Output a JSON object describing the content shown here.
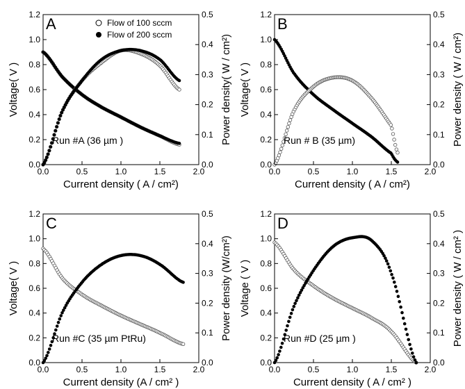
{
  "chart_data": [
    {
      "panel": "A",
      "type": "scatter",
      "annotation": "Run #A (36 µm )",
      "xlabel": "Current density ( A / cm²)",
      "ylabel_left": "Voltage( V )",
      "ylabel_right": "Power density( W / cm²)",
      "xlim": [
        0,
        2.0
      ],
      "ylim_left": [
        0,
        1.2
      ],
      "ylim_right": [
        0,
        0.5
      ],
      "x_ticks": [
        "0.0",
        "0.5",
        "1.0",
        "1.5",
        "2.0"
      ],
      "y_left_ticks": [
        "0.0",
        "0.2",
        "0.4",
        "0.6",
        "0.8",
        "1.0",
        "1.2"
      ],
      "y_right_ticks": [
        "0.0",
        "0.1",
        "0.2",
        "0.3",
        "0.4",
        "0.5"
      ],
      "legend": [
        "Flow of 100 sccm",
        "Flow of 200 sccm"
      ],
      "legend_position": "top-right",
      "curves": {
        "ocv": 0.9,
        "vmax_current": 1.75,
        "v_end": 0.17,
        "power_peak": 0.38,
        "power_peak_current": 1.1
      },
      "series": [
        {
          "marker": "open",
          "kind": "voltage",
          "x": [
            0.0,
            0.25,
            0.5,
            0.75,
            1.0,
            1.25,
            1.5,
            1.75
          ],
          "y": [
            0.9,
            0.7,
            0.56,
            0.46,
            0.38,
            0.3,
            0.23,
            0.16
          ]
        },
        {
          "marker": "filled",
          "kind": "voltage",
          "x": [
            0.0,
            0.25,
            0.5,
            0.75,
            1.0,
            1.25,
            1.5,
            1.75
          ],
          "y": [
            0.9,
            0.7,
            0.56,
            0.46,
            0.38,
            0.3,
            0.23,
            0.17
          ]
        },
        {
          "marker": "open",
          "kind": "power",
          "x": [
            0.0,
            0.25,
            0.5,
            0.75,
            1.0,
            1.25,
            1.5,
            1.75
          ],
          "y": [
            0.0,
            0.18,
            0.28,
            0.34,
            0.38,
            0.37,
            0.33,
            0.25
          ]
        },
        {
          "marker": "filled",
          "kind": "power",
          "x": [
            0.0,
            0.25,
            0.5,
            0.75,
            1.0,
            1.25,
            1.5,
            1.75
          ],
          "y": [
            0.0,
            0.18,
            0.28,
            0.35,
            0.38,
            0.38,
            0.35,
            0.28
          ]
        }
      ]
    },
    {
      "panel": "B",
      "type": "scatter",
      "annotation": "Run # B (35 µm)",
      "xlabel": "Current density ( A / cm²)",
      "ylabel_left": "Voltage( V )",
      "ylabel_right": "Power density ( W / cm²)",
      "xlim": [
        0,
        2.0
      ],
      "ylim_left": [
        0,
        1.2
      ],
      "ylim_right": [
        0,
        0.5
      ],
      "x_ticks": [
        "0.0",
        "0.5",
        "1.0",
        "1.5",
        "2.0"
      ],
      "y_left_ticks": [
        "0.0",
        "0.2",
        "0.4",
        "0.6",
        "0.8",
        "1.0",
        "1.2"
      ],
      "y_right_ticks": [
        "0.0",
        "0.1",
        "0.2",
        "0.3",
        "0.4",
        "0.5"
      ],
      "curves": {
        "ocv": 1.0,
        "vmax_current": 1.58,
        "v_end": 0.02,
        "power_peak": 0.29,
        "power_peak_current": 0.8
      },
      "series": [
        {
          "marker": "filled",
          "kind": "voltage",
          "x": [
            0.0,
            0.25,
            0.5,
            0.75,
            1.0,
            1.25,
            1.5,
            1.58
          ],
          "y": [
            1.0,
            0.73,
            0.56,
            0.44,
            0.33,
            0.22,
            0.09,
            0.02
          ]
        },
        {
          "marker": "open",
          "kind": "power",
          "x": [
            0.0,
            0.25,
            0.5,
            0.75,
            1.0,
            1.25,
            1.5,
            1.58
          ],
          "y": [
            0.0,
            0.18,
            0.26,
            0.29,
            0.28,
            0.22,
            0.13,
            0.04
          ]
        }
      ]
    },
    {
      "panel": "C",
      "type": "scatter",
      "annotation": "Run #C (35 µm PtRu)",
      "xlabel": "Current density (A / cm² )",
      "ylabel_left": "Voltage( V )",
      "ylabel_right": "Power density (W/cm²)",
      "xlim": [
        0,
        2.0
      ],
      "ylim_left": [
        0,
        1.2
      ],
      "ylim_right": [
        0,
        0.5
      ],
      "x_ticks": [
        "0.0",
        "0.5",
        "1.0",
        "1.5",
        "2.0"
      ],
      "y_left_ticks": [
        "0.0",
        "0.2",
        "0.4",
        "0.6",
        "0.8",
        "1.0",
        "1.2"
      ],
      "y_right_ticks": [
        "0.0",
        "0.1",
        "0.2",
        "0.3",
        "0.4",
        "0.5"
      ],
      "curves": {
        "ocv": 0.92,
        "vmax_current": 1.8,
        "v_end": 0.15,
        "power_peak": 0.36,
        "power_peak_current": 1.1
      },
      "series": [
        {
          "marker": "open",
          "kind": "voltage",
          "x": [
            0.0,
            0.25,
            0.5,
            0.75,
            1.0,
            1.25,
            1.5,
            1.8
          ],
          "y": [
            0.92,
            0.68,
            0.55,
            0.46,
            0.38,
            0.31,
            0.24,
            0.15
          ]
        },
        {
          "marker": "filled",
          "kind": "power",
          "x": [
            0.0,
            0.25,
            0.5,
            0.75,
            1.0,
            1.25,
            1.5,
            1.8
          ],
          "y": [
            0.0,
            0.17,
            0.27,
            0.33,
            0.36,
            0.36,
            0.33,
            0.27
          ]
        }
      ]
    },
    {
      "panel": "D",
      "type": "scatter",
      "annotation": "Run #D (25 µm )",
      "xlabel": "Current density ( A / cm² )",
      "ylabel_left": "Voltage ( V )",
      "ylabel_right": "Power density ( W / cm² )",
      "xlim": [
        0,
        2.0
      ],
      "ylim_left": [
        0,
        1.2
      ],
      "ylim_right": [
        0,
        0.5
      ],
      "x_ticks": [
        "0.0",
        "0.5",
        "1.0",
        "1.5",
        "2.0"
      ],
      "y_left_ticks": [
        "0.0",
        "0.2",
        "0.4",
        "0.6",
        "0.8",
        "1.0",
        "1.2"
      ],
      "y_right_ticks": [
        "0.0",
        "0.1",
        "0.2",
        "0.3",
        "0.4",
        "0.5"
      ],
      "curves": {
        "ocv": 0.97,
        "vmax_current": 1.82,
        "v_end": 0.0,
        "power_peak": 0.42,
        "power_peak_current": 1.2
      },
      "series": [
        {
          "marker": "open",
          "kind": "voltage",
          "x": [
            0.0,
            0.25,
            0.5,
            0.75,
            1.0,
            1.25,
            1.5,
            1.82
          ],
          "y": [
            0.97,
            0.75,
            0.62,
            0.52,
            0.44,
            0.36,
            0.25,
            0.0
          ]
        },
        {
          "marker": "filled",
          "kind": "power",
          "x": [
            0.0,
            0.25,
            0.5,
            0.75,
            1.0,
            1.25,
            1.5,
            1.82
          ],
          "y": [
            0.0,
            0.19,
            0.31,
            0.39,
            0.42,
            0.41,
            0.3,
            0.0
          ]
        }
      ]
    }
  ]
}
